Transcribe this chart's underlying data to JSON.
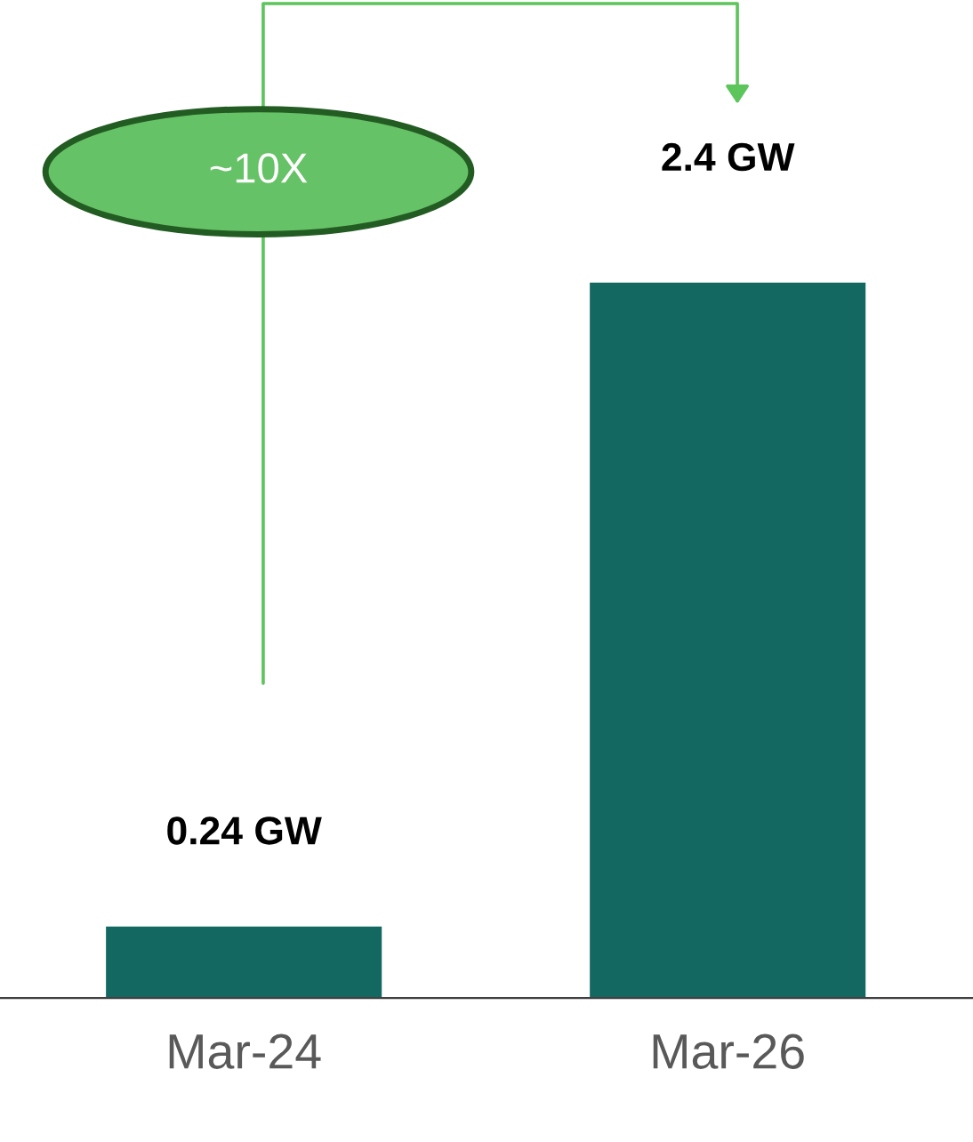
{
  "chart_data": {
    "type": "bar",
    "categories": [
      "Mar-24",
      "Mar-26"
    ],
    "values": [
      0.24,
      2.4
    ],
    "color": "#136861",
    "value_labels": [
      "0.24 GW",
      "2.4 GW"
    ],
    "annotations": [
      "~10X"
    ]
  }
}
